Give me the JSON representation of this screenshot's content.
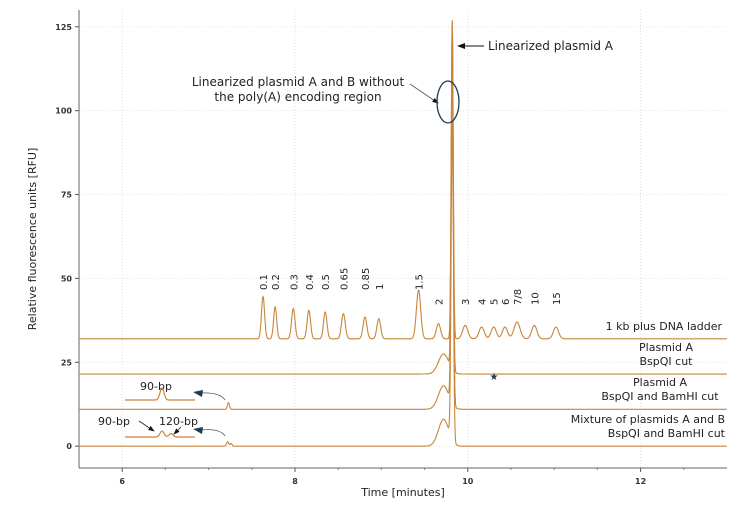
{
  "chart_data": {
    "type": "line",
    "title": "",
    "xlabel": "Time [minutes]",
    "ylabel": "Relative fluorescence units [RFU]",
    "xlim": [
      5.5,
      13
    ],
    "ylim": [
      -6.5,
      130
    ],
    "xticks": [
      6,
      8,
      10,
      12
    ],
    "yticks": [
      0,
      25,
      50,
      75,
      100,
      125
    ],
    "grid": true,
    "trace_color": "#c8853a",
    "series": [
      {
        "name": "1 kb plus DNA ladder",
        "baseline": 32,
        "peaks": [
          [
            7.63,
            12.6,
            0.018
          ],
          [
            7.77,
            9.5,
            0.018
          ],
          [
            7.98,
            9,
            0.02
          ],
          [
            8.16,
            8.5,
            0.02
          ],
          [
            8.35,
            8,
            0.02
          ],
          [
            8.56,
            7.5,
            0.022
          ],
          [
            8.81,
            6.5,
            0.022
          ],
          [
            8.97,
            6,
            0.022
          ],
          [
            9.43,
            14.5,
            0.025
          ],
          [
            9.66,
            4.5,
            0.025
          ],
          [
            9.82,
            93,
            0.012
          ],
          [
            9.97,
            4,
            0.03
          ],
          [
            10.16,
            3.5,
            0.03
          ],
          [
            10.3,
            3.5,
            0.03
          ],
          [
            10.43,
            3.5,
            0.03
          ],
          [
            10.57,
            5,
            0.035
          ],
          [
            10.77,
            4,
            0.03
          ],
          [
            11.02,
            3.5,
            0.03
          ]
        ]
      },
      {
        "name": "Plasmid A BspQI cut",
        "baseline": 21.5,
        "peaks": [
          [
            9.82,
            104,
            0.012
          ],
          [
            9.72,
            6,
            0.06
          ]
        ]
      },
      {
        "name": "Plasmid A BspQI and BamHI cut",
        "baseline": 11,
        "peaks": [
          [
            7.23,
            2,
            0.012
          ],
          [
            9.82,
            100,
            0.013
          ],
          [
            9.72,
            7,
            0.06
          ]
        ]
      },
      {
        "name": "Mixture of plasmids A and B BspQI and BamHI cut",
        "baseline": 0,
        "peaks": [
          [
            7.22,
            1.3,
            0.012
          ],
          [
            7.26,
            0.8,
            0.012
          ],
          [
            9.82,
            95,
            0.013
          ],
          [
            9.72,
            8,
            0.06
          ]
        ]
      }
    ],
    "ladder_labels": [
      {
        "text": "0.1",
        "x": 7.63
      },
      {
        "text": "0.2",
        "x": 7.77
      },
      {
        "text": "0.3",
        "x": 7.98
      },
      {
        "text": "0.4",
        "x": 8.16
      },
      {
        "text": "0.5",
        "x": 8.35
      },
      {
        "text": "0.65",
        "x": 8.56
      },
      {
        "text": "0.85",
        "x": 8.81
      },
      {
        "text": "1",
        "x": 8.97
      },
      {
        "text": "1.5",
        "x": 9.43
      },
      {
        "text": "2",
        "x": 9.66
      },
      {
        "text": "3",
        "x": 9.97
      },
      {
        "text": "4",
        "x": 10.16
      },
      {
        "text": "5",
        "x": 10.3
      },
      {
        "text": "6",
        "x": 10.43
      },
      {
        "text": "7/8",
        "x": 10.57
      },
      {
        "text": "10",
        "x": 10.77
      },
      {
        "text": "15",
        "x": 11.02
      }
    ],
    "trace_labels": [
      [
        "1 kb plus DNA ladder"
      ],
      [
        "Plasmid A",
        "BspQI cut"
      ],
      [
        "Plasmid A",
        "BspQI and BamHI cut"
      ],
      [
        "Mixture of plasmids A and B",
        "BspQI and BamHI cut"
      ]
    ],
    "annotations": {
      "linearized_a": "Linearized plasmid A",
      "linearized_ab_line1": "Linearized plasmid A and B without",
      "linearized_ab_line2": "the poly(A) encoding region",
      "inset1_label": "90-bp",
      "inset2_label_a": "90-bp",
      "inset2_label_b": "120-bp",
      "star": "★"
    }
  }
}
